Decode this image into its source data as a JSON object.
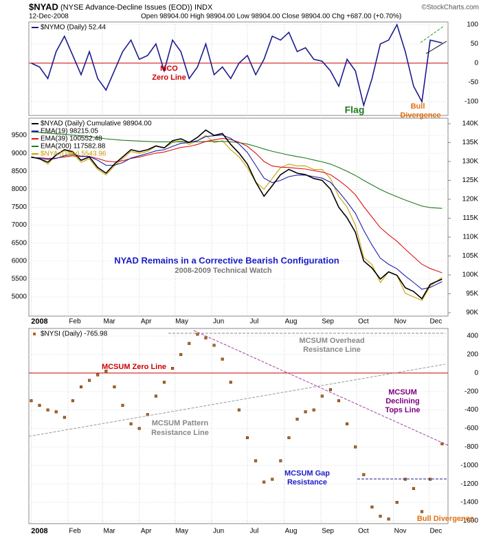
{
  "header": {
    "title": "$NYAD",
    "description": "(NYSE Advance-Decline Issues (EOD)) INDX",
    "date": "12-Dec-2008",
    "quote": "Open 98904.00   High 98904.00   Low 98904.00   Close 98904.00   Chg +687.00 (+0.70%)",
    "source": "©StockCharts.com"
  },
  "chart_data": [
    {
      "type": "line",
      "zero_line_color": "#cc0000",
      "grid": true,
      "x": [
        0,
        7,
        14,
        21,
        28,
        35,
        42,
        49,
        56,
        63,
        70,
        77,
        84,
        91,
        98,
        105,
        112,
        119,
        126,
        133,
        140,
        147,
        154,
        161,
        168,
        175,
        182,
        189,
        196,
        203,
        210,
        217,
        224,
        231,
        238,
        245,
        252,
        259,
        266,
        273,
        280,
        287,
        294,
        301,
        308,
        315,
        322,
        329,
        336,
        346
      ],
      "xlim": [
        -2,
        351
      ],
      "ylim": [
        -136,
        107
      ],
      "yticks": [
        100,
        50,
        0,
        -50,
        -100
      ],
      "series": [
        {
          "name": "$NYMO (Daily) 52.44",
          "color": "#1a1a8c",
          "values": [
            0,
            -10,
            -40,
            30,
            70,
            20,
            -30,
            30,
            -40,
            -70,
            -20,
            30,
            60,
            10,
            20,
            50,
            -20,
            60,
            30,
            -40,
            -10,
            50,
            -30,
            -10,
            -40,
            0,
            20,
            -30,
            10,
            70,
            60,
            80,
            30,
            40,
            10,
            5,
            -20,
            -60,
            10,
            -20,
            -110,
            -40,
            50,
            60,
            100,
            30,
            -60,
            -100,
            60,
            52.44
          ]
        }
      ],
      "annotations": [
        "MCO",
        "Zero Line",
        "Flag",
        "Bull",
        "Divergence"
      ]
    },
    {
      "type": "line",
      "grid": true,
      "x": [
        0,
        7,
        14,
        21,
        28,
        35,
        42,
        49,
        56,
        63,
        70,
        77,
        84,
        91,
        98,
        105,
        112,
        119,
        126,
        133,
        140,
        147,
        154,
        161,
        168,
        175,
        182,
        189,
        196,
        203,
        210,
        217,
        224,
        231,
        238,
        245,
        252,
        259,
        266,
        273,
        280,
        287,
        294,
        301,
        308,
        315,
        322,
        329,
        336,
        346
      ],
      "xlim": [
        -2,
        351
      ],
      "xticks": [
        {
          "value": 0,
          "label": "2008"
        },
        {
          "value": 31,
          "label": "Feb"
        },
        {
          "value": 60,
          "label": "Mar"
        },
        {
          "value": 91,
          "label": "Apr"
        },
        {
          "value": 121,
          "label": "May"
        },
        {
          "value": 152,
          "label": "Jun"
        },
        {
          "value": 182,
          "label": "Jul"
        },
        {
          "value": 213,
          "label": "Aug"
        },
        {
          "value": 244,
          "label": "Sep"
        },
        {
          "value": 274,
          "label": "Oct"
        },
        {
          "value": 305,
          "label": "Nov"
        },
        {
          "value": 335,
          "label": "Dec"
        }
      ],
      "ylim": [
        4464,
        9979
      ],
      "yticks": [
        9500,
        9000,
        8500,
        8000,
        7500,
        7000,
        6500,
        6000,
        5500,
        5000
      ],
      "y2lim": [
        89100,
        141450
      ],
      "y2ticks": [
        {
          "value": 140000,
          "label": "140K"
        },
        {
          "value": 135000,
          "label": "135K"
        },
        {
          "value": 130000,
          "label": "130K"
        },
        {
          "value": 125000,
          "label": "125K"
        },
        {
          "value": 120000,
          "label": "120K"
        },
        {
          "value": 115000,
          "label": "115K"
        },
        {
          "value": 110000,
          "label": "110K"
        },
        {
          "value": 105000,
          "label": "105K"
        },
        {
          "value": 100000,
          "label": "100K"
        },
        {
          "value": 95000,
          "label": "95K"
        },
        {
          "value": 90000,
          "label": "90K"
        }
      ],
      "series": [
        {
          "name": "$NYAD (Daily) Cumulative 98904.00",
          "color": "#000000",
          "axis": "y2",
          "values": [
            131200,
            130700,
            129800,
            131700,
            133100,
            132600,
            130300,
            131200,
            128400,
            126900,
            129300,
            131200,
            133100,
            132600,
            133100,
            134100,
            133600,
            135500,
            136000,
            135000,
            136400,
            138300,
            136900,
            137400,
            134500,
            132200,
            129300,
            124600,
            120800,
            123600,
            126500,
            127900,
            126900,
            126500,
            125500,
            125000,
            122700,
            117900,
            115100,
            111300,
            103700,
            101800,
            98900,
            100800,
            99900,
            96600,
            95600,
            93700,
            97500,
            98904
          ]
        },
        {
          "name": "EMA(19) 98215.05",
          "color": "#1c1ca8",
          "axis": "y2",
          "values": [
            131000,
            130900,
            130500,
            130800,
            131500,
            131900,
            131400,
            131300,
            130300,
            129000,
            129000,
            129700,
            130900,
            131500,
            132100,
            132800,
            133100,
            134000,
            134800,
            135000,
            135500,
            136600,
            136800,
            137000,
            136100,
            134600,
            132400,
            129000,
            125600,
            124400,
            125000,
            126000,
            126400,
            126400,
            126000,
            125600,
            124500,
            122000,
            119300,
            116300,
            111800,
            107900,
            104400,
            102800,
            101600,
            99700,
            98000,
            96200,
            96700,
            98215.05
          ]
        },
        {
          "name": "EMA(39) 100552.48",
          "color": "#dd1111",
          "axis": "y2",
          "values": [
            131000,
            131000,
            130800,
            130900,
            131200,
            131500,
            131300,
            131300,
            130800,
            130100,
            129900,
            130200,
            130800,
            131200,
            131700,
            132200,
            132500,
            133100,
            133700,
            134000,
            134500,
            135300,
            135700,
            136100,
            135800,
            135100,
            134000,
            132200,
            130000,
            128800,
            128500,
            128400,
            128200,
            128000,
            127600,
            127200,
            126500,
            125000,
            123300,
            121200,
            118100,
            115300,
            112500,
            110600,
            108900,
            106800,
            104800,
            102800,
            101700,
            100552.48
          ]
        },
        {
          "name": "EMA(200) 117582.88",
          "color": "#1e7a1e",
          "axis": "y2",
          "values": [
            137800,
            137700,
            137500,
            137300,
            137200,
            137000,
            136800,
            136600,
            136300,
            136000,
            135800,
            135600,
            135500,
            135400,
            135300,
            135200,
            135200,
            135200,
            135200,
            135200,
            135200,
            135300,
            135300,
            135300,
            135200,
            135000,
            134600,
            134000,
            133300,
            132700,
            132200,
            131700,
            131300,
            130900,
            130400,
            129900,
            129300,
            128400,
            127400,
            126300,
            125000,
            123800,
            122600,
            121600,
            120700,
            119800,
            119000,
            118200,
            117800,
            117582.88
          ]
        },
        {
          "name": "$NYA (Daily) 5543.96",
          "color": "#c8a000",
          "values": [
            8900,
            8850,
            8700,
            8950,
            9100,
            9000,
            8750,
            8850,
            8550,
            8400,
            8650,
            8850,
            9050,
            9000,
            9050,
            9200,
            9150,
            9300,
            9350,
            9250,
            9350,
            9500,
            9300,
            9350,
            9100,
            8900,
            8600,
            8200,
            8000,
            8300,
            8600,
            8700,
            8650,
            8650,
            8550,
            8550,
            8300,
            7800,
            7500,
            7000,
            6100,
            5900,
            5400,
            5700,
            5600,
            5100,
            5000,
            4900,
            5300,
            5543.96
          ]
        }
      ],
      "annotations": [
        "NYAD Remains in a Corrective Bearish Configuration",
        "2008-2009 Technical Watch"
      ]
    },
    {
      "type": "scatter",
      "zero_line_color": "#cc0000",
      "grid": true,
      "x": [
        0,
        7,
        14,
        21,
        28,
        35,
        42,
        49,
        56,
        63,
        70,
        77,
        84,
        91,
        98,
        105,
        112,
        119,
        126,
        133,
        140,
        147,
        154,
        161,
        168,
        175,
        182,
        189,
        196,
        203,
        210,
        217,
        224,
        231,
        238,
        245,
        252,
        259,
        266,
        273,
        280,
        287,
        294,
        301,
        308,
        315,
        322,
        329,
        336,
        346
      ],
      "xlim": [
        -2,
        351
      ],
      "xticks": [
        {
          "value": 0,
          "label": "2008"
        },
        {
          "value": 31,
          "label": "Feb"
        },
        {
          "value": 60,
          "label": "Mar"
        },
        {
          "value": 91,
          "label": "Apr"
        },
        {
          "value": 121,
          "label": "May"
        },
        {
          "value": 152,
          "label": "Jun"
        },
        {
          "value": 182,
          "label": "Jul"
        },
        {
          "value": 213,
          "label": "Aug"
        },
        {
          "value": 244,
          "label": "Sep"
        },
        {
          "value": 274,
          "label": "Oct"
        },
        {
          "value": 305,
          "label": "Nov"
        },
        {
          "value": 335,
          "label": "Dec"
        }
      ],
      "ylim": [
        -1630,
        482
      ],
      "yticks": [
        400,
        200,
        0,
        -200,
        -400,
        -600,
        -800,
        -1000,
        -1200,
        -1400,
        -1600
      ],
      "series": [
        {
          "name": "$NYSI (Daily) -765.98",
          "color": "#b5651d",
          "values": [
            -300,
            -350,
            -400,
            -420,
            -480,
            -300,
            -150,
            -80,
            -20,
            20,
            -150,
            -350,
            -550,
            -600,
            -450,
            -250,
            -100,
            50,
            200,
            320,
            420,
            380,
            300,
            150,
            -100,
            -400,
            -700,
            -950,
            -1180,
            -1150,
            -950,
            -700,
            -500,
            -420,
            -400,
            -250,
            -180,
            -300,
            -550,
            -800,
            -1100,
            -1450,
            -1550,
            -1580,
            -1400,
            -1150,
            -1250,
            -1500,
            -1150,
            -765.98
          ]
        }
      ],
      "annotations": [
        "MCSUM Zero Line",
        "MCSUM Overhead",
        "Resistance Line",
        "MCSUM Pattern",
        "Resistance Line",
        "MCSUM",
        "Declining",
        "Tops Line",
        "MCSUM Gap",
        "Resistance",
        "Bull Divergence"
      ]
    }
  ]
}
